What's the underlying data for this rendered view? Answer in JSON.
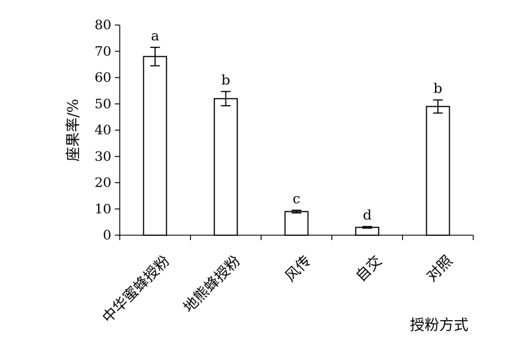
{
  "chart_data": {
    "type": "bar",
    "categories": [
      "中华蜜蜂授粉",
      "地熊蜂授粉",
      "风传",
      "自交",
      "对照"
    ],
    "values": [
      68,
      52,
      9,
      3,
      49
    ],
    "error": [
      3.5,
      2.7,
      0.5,
      0.3,
      2.5
    ],
    "significance": [
      "a",
      "b",
      "c",
      "d",
      "b"
    ],
    "xlabel": "授粉方式",
    "ylabel": "座果率/%",
    "ylim": [
      0,
      80
    ],
    "yticks": [
      0,
      10,
      20,
      30,
      40,
      50,
      60,
      70,
      80
    ],
    "grid": false,
    "legend": "none"
  },
  "colors": {
    "bar_fill": "#ffffff",
    "bar_stroke": "#000000",
    "axis": "#000000"
  }
}
